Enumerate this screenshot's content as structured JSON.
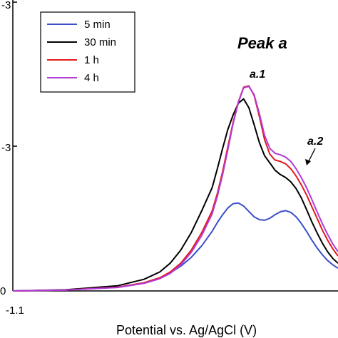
{
  "chart_data": {
    "type": "line",
    "xlabel": "Potential vs. Ag/AgCl (V)",
    "ylabel": "",
    "x_tick_labels": [
      "-1.1"
    ],
    "y_tick_labels": [
      "0",
      "-3",
      "-3"
    ],
    "xlim": [
      -1.1,
      -0.48
    ],
    "ylim": [
      0,
      1.0
    ],
    "grid": false,
    "legend_position": "top-left",
    "series": [
      {
        "name": "5 min",
        "color": "#3b4fc8",
        "x": [
          -1.1,
          -1.0,
          -0.9,
          -0.85,
          -0.82,
          -0.8,
          -0.78,
          -0.76,
          -0.74,
          -0.72,
          -0.71,
          -0.7,
          -0.69,
          -0.68,
          -0.67,
          -0.66,
          -0.65,
          -0.64,
          -0.63,
          -0.62,
          -0.61,
          -0.6,
          -0.59,
          -0.58,
          -0.57,
          -0.56,
          -0.55,
          -0.54,
          -0.53,
          -0.52,
          -0.51,
          -0.5,
          -0.49,
          -0.48
        ],
        "y": [
          0.0,
          0.003,
          0.013,
          0.028,
          0.045,
          0.062,
          0.085,
          0.115,
          0.155,
          0.205,
          0.235,
          0.262,
          0.285,
          0.3,
          0.302,
          0.292,
          0.273,
          0.255,
          0.245,
          0.243,
          0.25,
          0.262,
          0.272,
          0.276,
          0.27,
          0.255,
          0.232,
          0.205,
          0.175,
          0.148,
          0.125,
          0.105,
          0.09,
          0.078
        ]
      },
      {
        "name": "30 min",
        "color": "#000000",
        "x": [
          -1.1,
          -1.0,
          -0.9,
          -0.85,
          -0.82,
          -0.8,
          -0.78,
          -0.76,
          -0.74,
          -0.72,
          -0.71,
          -0.7,
          -0.69,
          -0.68,
          -0.67,
          -0.66,
          -0.65,
          -0.64,
          -0.63,
          -0.62,
          -0.61,
          -0.6,
          -0.59,
          -0.58,
          -0.57,
          -0.56,
          -0.55,
          -0.54,
          -0.53,
          -0.52,
          -0.51,
          -0.5,
          -0.49,
          -0.48
        ],
        "y": [
          0.0,
          0.004,
          0.018,
          0.04,
          0.065,
          0.095,
          0.14,
          0.2,
          0.275,
          0.355,
          0.42,
          0.49,
          0.555,
          0.605,
          0.645,
          0.66,
          0.63,
          0.572,
          0.51,
          0.465,
          0.44,
          0.415,
          0.4,
          0.39,
          0.375,
          0.352,
          0.32,
          0.28,
          0.238,
          0.2,
          0.165,
          0.135,
          0.112,
          0.095
        ]
      },
      {
        "name": "1 h",
        "color": "#e31a1c",
        "x": [
          -1.1,
          -1.0,
          -0.9,
          -0.85,
          -0.82,
          -0.8,
          -0.78,
          -0.76,
          -0.74,
          -0.72,
          -0.71,
          -0.7,
          -0.69,
          -0.68,
          -0.67,
          -0.66,
          -0.65,
          -0.64,
          -0.63,
          -0.62,
          -0.61,
          -0.6,
          -0.59,
          -0.58,
          -0.57,
          -0.56,
          -0.55,
          -0.54,
          -0.53,
          -0.52,
          -0.51,
          -0.5,
          -0.49,
          -0.48
        ],
        "y": [
          0.0,
          0.003,
          0.013,
          0.028,
          0.045,
          0.065,
          0.095,
          0.14,
          0.2,
          0.275,
          0.335,
          0.41,
          0.495,
          0.58,
          0.65,
          0.7,
          0.705,
          0.672,
          0.6,
          0.52,
          0.47,
          0.45,
          0.445,
          0.437,
          0.42,
          0.395,
          0.365,
          0.33,
          0.29,
          0.25,
          0.21,
          0.175,
          0.145,
          0.12
        ]
      },
      {
        "name": "4 h",
        "color": "#b23ad8",
        "x": [
          -1.1,
          -1.0,
          -0.9,
          -0.85,
          -0.82,
          -0.8,
          -0.78,
          -0.76,
          -0.74,
          -0.72,
          -0.71,
          -0.7,
          -0.69,
          -0.68,
          -0.67,
          -0.66,
          -0.65,
          -0.64,
          -0.63,
          -0.62,
          -0.61,
          -0.6,
          -0.59,
          -0.58,
          -0.57,
          -0.56,
          -0.55,
          -0.54,
          -0.53,
          -0.52,
          -0.51,
          -0.5,
          -0.49,
          -0.48
        ],
        "y": [
          0.0,
          0.003,
          0.012,
          0.026,
          0.042,
          0.06,
          0.09,
          0.132,
          0.19,
          0.265,
          0.325,
          0.4,
          0.485,
          0.575,
          0.648,
          0.698,
          0.703,
          0.675,
          0.61,
          0.535,
          0.49,
          0.473,
          0.468,
          0.46,
          0.445,
          0.42,
          0.39,
          0.355,
          0.315,
          0.272,
          0.232,
          0.195,
          0.162,
          0.135
        ]
      }
    ],
    "annotations": [
      {
        "text": "Peak a",
        "style": "large-bold-italic"
      },
      {
        "text": "a.1",
        "style": "bold-italic"
      },
      {
        "text": "a.2",
        "style": "bold-italic",
        "arrow": true
      }
    ]
  }
}
